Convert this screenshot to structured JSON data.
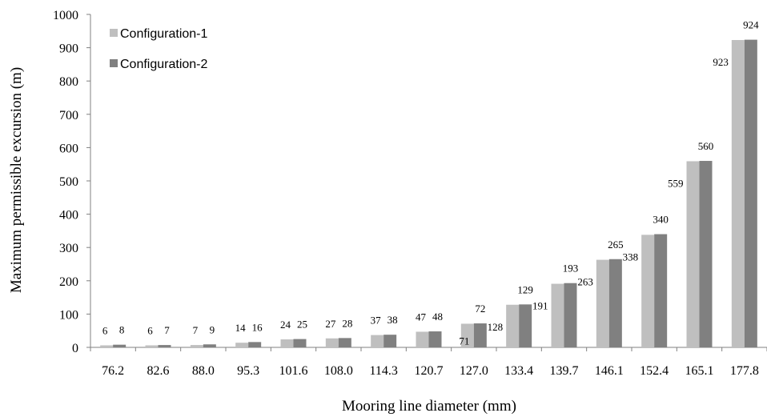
{
  "chart_data": {
    "type": "bar",
    "title": "",
    "xlabel": "Mooring line diameter (mm)",
    "ylabel": "Maximum permissible excursion (m)",
    "categories": [
      "76.2",
      "82.6",
      "88.0",
      "95.3",
      "101.6",
      "108.0",
      "114.3",
      "120.7",
      "127.0",
      "133.4",
      "139.7",
      "146.1",
      "152.4",
      "165.1",
      "177.8"
    ],
    "series": [
      {
        "name": "Configuration-1",
        "color": "#bfbfbf",
        "values": [
          6,
          6,
          7,
          14,
          24,
          27,
          37,
          47,
          71,
          128,
          191,
          263,
          338,
          559,
          923
        ]
      },
      {
        "name": "Configuration-2",
        "color": "#808080",
        "values": [
          8,
          7,
          9,
          16,
          25,
          28,
          38,
          48,
          72,
          129,
          193,
          265,
          340,
          560,
          924
        ]
      }
    ],
    "ylim": [
      0,
      1000
    ],
    "yticks": [
      0,
      100,
      200,
      300,
      400,
      500,
      600,
      700,
      800,
      900,
      1000
    ],
    "ytick_labels": [
      "0",
      "100",
      "200",
      "300",
      "400",
      "500",
      "600",
      "700",
      "800",
      "900",
      "1000"
    ],
    "grid": false,
    "legend_position": "top-left"
  }
}
